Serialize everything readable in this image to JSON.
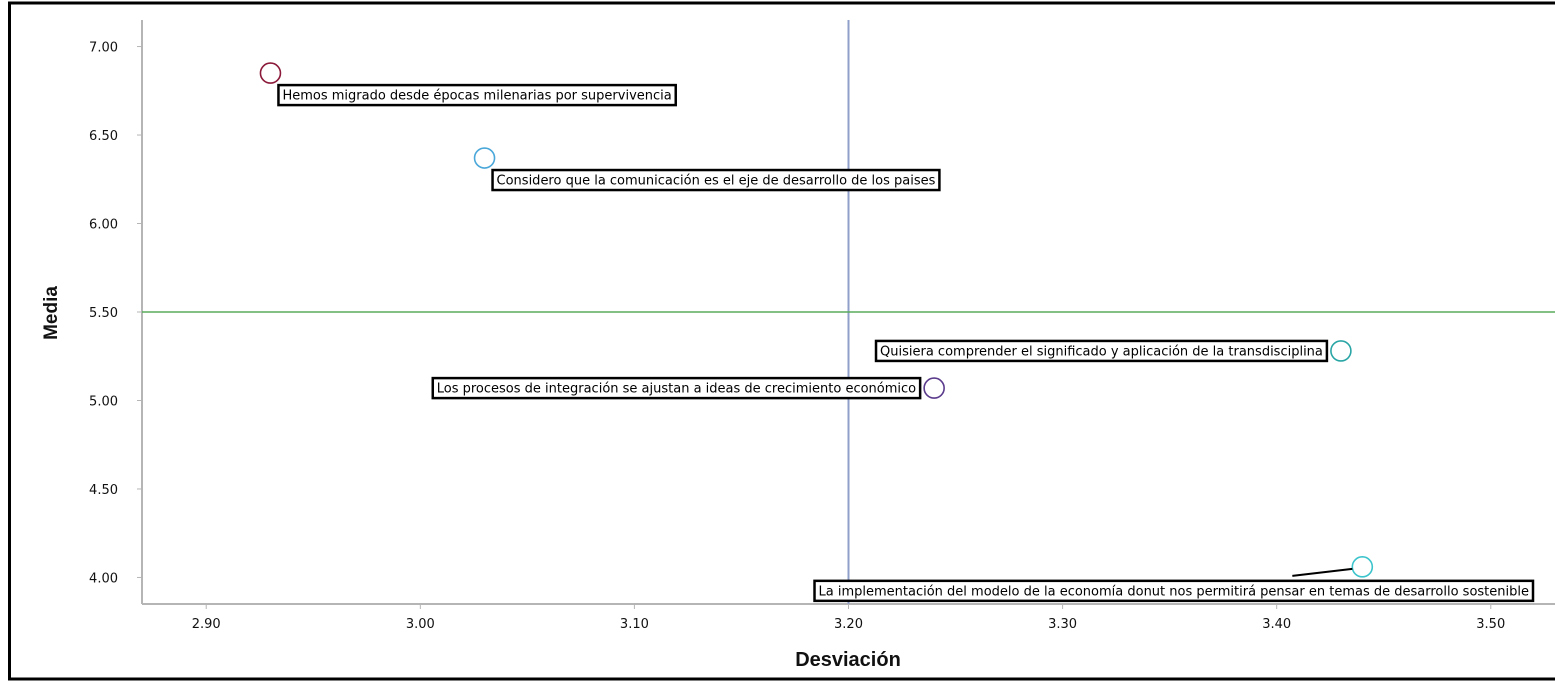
{
  "chart_data": {
    "type": "scatter",
    "xlabel": "Desviación",
    "ylabel": "Media",
    "xlim": [
      2.87,
      3.53
    ],
    "ylim": [
      3.85,
      7.15
    ],
    "x_ticks": [
      2.9,
      3.0,
      3.1,
      3.2,
      3.3,
      3.4,
      3.5
    ],
    "x_tick_labels": [
      "2.90",
      "3.00",
      "3.10",
      "3.20",
      "3.30",
      "3.40",
      "3.50"
    ],
    "y_ticks": [
      4.0,
      4.5,
      5.0,
      5.5,
      6.0,
      6.5,
      7.0
    ],
    "y_tick_labels": [
      "4.00",
      "4.50",
      "5.00",
      "5.50",
      "6.00",
      "6.50",
      "7.00"
    ],
    "grid": false,
    "reference_lines": [
      {
        "orientation": "vertical",
        "x": 3.2,
        "color": "#8f9fc9"
      },
      {
        "orientation": "horizontal",
        "y": 5.5,
        "color": "#5aab5a"
      }
    ],
    "points": [
      {
        "x": 2.93,
        "y": 6.85,
        "label": "Hemos migrado desde épocas milenarias por supervivencia",
        "color": "#8b1a3a",
        "label_side": "right"
      },
      {
        "x": 3.03,
        "y": 6.37,
        "label": "Considero que la comunicación es el eje de desarrollo de los paises",
        "color": "#4aa7d9",
        "label_side": "right"
      },
      {
        "x": 3.43,
        "y": 5.28,
        "label": "Quisiera comprender el significado y aplicación de la transdisciplina",
        "color": "#2aa5a5",
        "label_side": "left"
      },
      {
        "x": 3.24,
        "y": 5.07,
        "label": "Los procesos de integración se ajustan a ideas de crecimiento económico",
        "color": "#5b3b8c",
        "label_side": "left"
      },
      {
        "x": 3.44,
        "y": 4.06,
        "label": "La implementación del modelo de la economía donut nos permitirá pensar en temas de desarrollo sostenible",
        "color": "#3cc4cc",
        "label_side": "below-left"
      }
    ]
  }
}
